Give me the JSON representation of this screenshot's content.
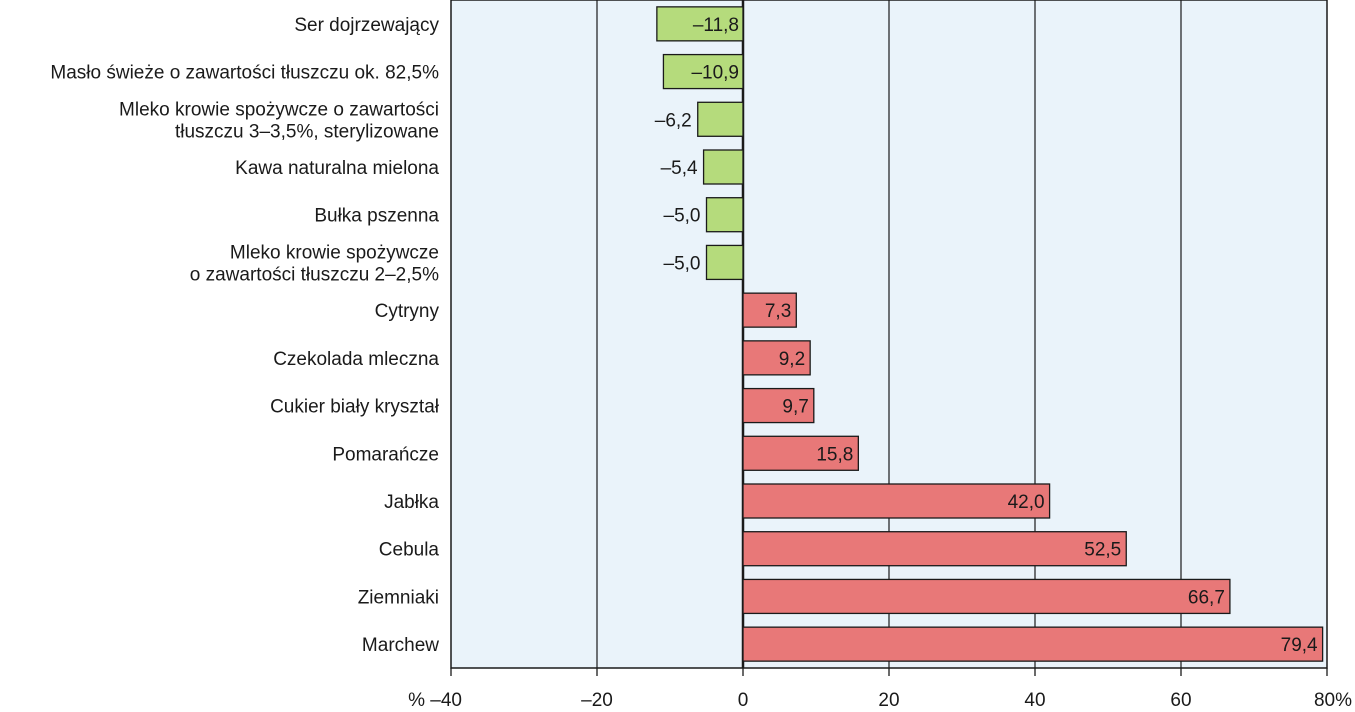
{
  "chart_data": {
    "type": "bar",
    "orientation": "horizontal",
    "categories": [
      [
        "Ser dojrzewający"
      ],
      [
        "Masło świeże o zawartości tłuszczu ok. 82,5%"
      ],
      [
        "Mleko krowie spożywcze o zawartości",
        "tłuszczu 3–3,5%, sterylizowane"
      ],
      [
        "Kawa naturalna mielona"
      ],
      [
        "Bułka pszenna"
      ],
      [
        "Mleko krowie spożywcze",
        "o zawartości tłuszczu 2–2,5%"
      ],
      [
        "Cytryny"
      ],
      [
        "Czekolada mleczna"
      ],
      [
        "Cukier biały kryształ"
      ],
      [
        "Pomarańcze"
      ],
      [
        "Jabłka"
      ],
      [
        "Cebula"
      ],
      [
        "Ziemniaki"
      ],
      [
        "Marchew"
      ]
    ],
    "values": [
      -11.8,
      -10.9,
      -6.2,
      -5.4,
      -5.0,
      -5.0,
      7.3,
      9.2,
      9.7,
      15.8,
      42.0,
      52.5,
      66.7,
      79.4
    ],
    "value_labels": [
      "–11,8",
      "–10,9",
      "–6,2",
      "–5,4",
      "–5,0",
      "–5,0",
      "7,3",
      "9,2",
      "9,7",
      "15,8",
      "42,0",
      "52,5",
      "66,7",
      "79,4"
    ],
    "xlim": [
      -40,
      80
    ],
    "x_ticks": [
      -40,
      -20,
      0,
      20,
      40,
      60,
      80
    ],
    "x_tick_labels": [
      "% –40",
      "–20",
      "0",
      "20",
      "40",
      "60",
      "80%"
    ],
    "grid": "vertical",
    "colors": {
      "background": "#eaf3fa",
      "negative": "#b5db7c",
      "positive": "#e87878",
      "border": "#1a1a1a"
    }
  }
}
